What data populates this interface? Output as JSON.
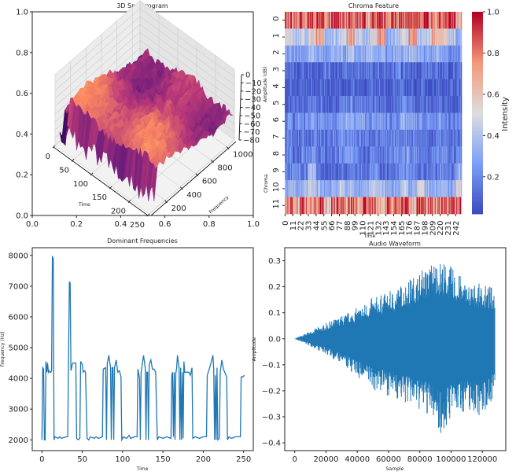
{
  "chart_data": [
    {
      "type": "surface",
      "title": "3D Spectrogram",
      "xlabel": "Time",
      "ylabel": "Frequency",
      "zlabel": "Amplitude (dB)",
      "x_ticks": [
        0,
        50,
        100,
        150,
        200,
        250
      ],
      "y_ticks": [
        200,
        400,
        600,
        800,
        1000
      ],
      "z_ticks": [
        0,
        -10,
        -20,
        -30,
        -40,
        -50,
        -60,
        -70,
        -80
      ],
      "colormap": "magma",
      "frame_x_ticks": [
        "0.0",
        "0.2",
        "0.4",
        "0.6",
        "0.8",
        "1.0"
      ],
      "frame_y_ticks": [
        "0.0",
        "0.2",
        "0.4",
        "0.6",
        "0.8",
        "1.0"
      ]
    },
    {
      "type": "heatmap",
      "title": "Chroma Feature",
      "xlabel": "Time",
      "ylabel": "Chroma",
      "row_labels": [
        "0",
        "1",
        "2",
        "3",
        "4",
        "5",
        "6",
        "7",
        "8",
        "9",
        "10",
        "11"
      ],
      "col_labels": [
        "0",
        "11",
        "22",
        "33",
        "44",
        "55",
        "66",
        "77",
        "88",
        "99",
        "110",
        "121",
        "132",
        "143",
        "154",
        "165",
        "176",
        "187",
        "198",
        "209",
        "220",
        "231",
        "242"
      ],
      "colormap": "coolwarm",
      "colorbar_label": "Intensity",
      "colorbar_ticks": [
        0.2,
        0.4,
        0.6,
        0.8,
        1.0
      ],
      "vlim": [
        0.02,
        1.0
      ],
      "values": [
        [
          0.95,
          0.9,
          0.85,
          0.95,
          0.9,
          0.8,
          0.95,
          0.85,
          0.9,
          0.8,
          0.95,
          0.9,
          0.95,
          0.85,
          0.9,
          0.95,
          0.9,
          0.85,
          0.95,
          0.9,
          0.85,
          0.95,
          0.7
        ],
        [
          0.55,
          0.4,
          0.45,
          0.5,
          0.75,
          0.35,
          0.4,
          0.45,
          0.7,
          0.45,
          0.4,
          0.5,
          0.75,
          0.35,
          0.4,
          0.5,
          0.8,
          0.4,
          0.45,
          0.7,
          0.6,
          0.4,
          0.35
        ],
        [
          0.3,
          0.25,
          0.3,
          0.35,
          0.3,
          0.25,
          0.3,
          0.3,
          0.35,
          0.3,
          0.3,
          0.35,
          0.3,
          0.25,
          0.3,
          0.3,
          0.35,
          0.3,
          0.3,
          0.35,
          0.3,
          0.2,
          0.25
        ],
        [
          0.12,
          0.1,
          0.12,
          0.1,
          0.12,
          0.15,
          0.1,
          0.12,
          0.1,
          0.15,
          0.12,
          0.1,
          0.12,
          0.1,
          0.15,
          0.12,
          0.1,
          0.12,
          0.15,
          0.1,
          0.12,
          0.1,
          0.12
        ],
        [
          0.08,
          0.07,
          0.1,
          0.08,
          0.07,
          0.1,
          0.08,
          0.07,
          0.1,
          0.08,
          0.07,
          0.08,
          0.1,
          0.07,
          0.08,
          0.1,
          0.07,
          0.08,
          0.07,
          0.1,
          0.08,
          0.07,
          0.09
        ],
        [
          0.12,
          0.1,
          0.12,
          0.15,
          0.12,
          0.1,
          0.15,
          0.18,
          0.2,
          0.15,
          0.12,
          0.15,
          0.12,
          0.1,
          0.15,
          0.2,
          0.15,
          0.12,
          0.1,
          0.12,
          0.15,
          0.1,
          0.12
        ],
        [
          0.2,
          0.18,
          0.2,
          0.25,
          0.2,
          0.22,
          0.25,
          0.3,
          0.3,
          0.28,
          0.25,
          0.22,
          0.25,
          0.2,
          0.25,
          0.3,
          0.25,
          0.22,
          0.2,
          0.22,
          0.2,
          0.18,
          0.2
        ],
        [
          0.15,
          0.12,
          0.15,
          0.18,
          0.15,
          0.12,
          0.18,
          0.2,
          0.22,
          0.18,
          0.15,
          0.18,
          0.15,
          0.12,
          0.18,
          0.2,
          0.18,
          0.15,
          0.12,
          0.15,
          0.18,
          0.12,
          0.15
        ],
        [
          0.15,
          0.12,
          0.18,
          0.25,
          0.15,
          0.12,
          0.15,
          0.2,
          0.25,
          0.2,
          0.15,
          0.2,
          0.18,
          0.15,
          0.2,
          0.25,
          0.2,
          0.15,
          0.12,
          0.15,
          0.2,
          0.15,
          0.2
        ],
        [
          0.18,
          0.25,
          0.15,
          0.4,
          0.12,
          0.1,
          0.1,
          0.15,
          0.2,
          0.18,
          0.15,
          0.2,
          0.15,
          0.12,
          0.18,
          0.2,
          0.18,
          0.12,
          0.1,
          0.15,
          0.2,
          0.12,
          0.3
        ],
        [
          0.35,
          0.3,
          0.35,
          0.4,
          0.35,
          0.3,
          0.35,
          0.4,
          0.35,
          0.3,
          0.35,
          0.45,
          0.35,
          0.3,
          0.35,
          0.4,
          0.3,
          0.45,
          0.35,
          0.3,
          0.35,
          0.3,
          0.45
        ],
        [
          0.85,
          0.65,
          0.9,
          0.75,
          0.85,
          0.65,
          0.9,
          0.85,
          0.9,
          0.7,
          0.9,
          0.85,
          0.65,
          0.9,
          0.85,
          0.9,
          0.7,
          0.95,
          0.9,
          0.85,
          0.9,
          0.85,
          0.95
        ]
      ]
    },
    {
      "type": "line",
      "title": "Dominant Frequencies",
      "xlabel": "Time",
      "ylabel": "Frequency (Hz)",
      "xlim": [
        -12,
        262
      ],
      "ylim": [
        1650,
        8250
      ],
      "x_ticks": [
        0,
        50,
        100,
        150,
        200,
        250
      ],
      "y_ticks": [
        2000,
        3000,
        4000,
        5000,
        6000,
        7000,
        8000
      ],
      "color": "#1f77b4",
      "points": [
        [
          0,
          2000
        ],
        [
          1,
          4350
        ],
        [
          2,
          4300
        ],
        [
          3,
          2000
        ],
        [
          4,
          2000
        ],
        [
          5,
          4550
        ],
        [
          6,
          4200
        ],
        [
          7,
          4500
        ],
        [
          8,
          4200
        ],
        [
          9,
          4250
        ],
        [
          10,
          4200
        ],
        [
          11,
          4200
        ],
        [
          12,
          4250
        ],
        [
          13,
          7950
        ],
        [
          14,
          7900
        ],
        [
          15,
          2000
        ],
        [
          16,
          2100
        ],
        [
          20,
          2050
        ],
        [
          22,
          2100
        ],
        [
          24,
          2050
        ],
        [
          30,
          2100
        ],
        [
          32,
          2100
        ],
        [
          34,
          7150
        ],
        [
          35,
          7100
        ],
        [
          36,
          4250
        ],
        [
          38,
          4500
        ],
        [
          42,
          4500
        ],
        [
          43,
          2050
        ],
        [
          45,
          2000
        ],
        [
          47,
          2050
        ],
        [
          48,
          4550
        ],
        [
          50,
          4450
        ],
        [
          51,
          4200
        ],
        [
          53,
          4250
        ],
        [
          54,
          4200
        ],
        [
          56,
          2050
        ],
        [
          58,
          2000
        ],
        [
          60,
          2100
        ],
        [
          65,
          2050
        ],
        [
          67,
          2100
        ],
        [
          70,
          2050
        ],
        [
          75,
          2100
        ],
        [
          76,
          4300
        ],
        [
          79,
          4350
        ],
        [
          80,
          2000
        ],
        [
          81,
          4500
        ],
        [
          83,
          4750
        ],
        [
          85,
          4350
        ],
        [
          86,
          2000
        ],
        [
          87,
          4350
        ],
        [
          88,
          4350
        ],
        [
          89,
          2000
        ],
        [
          90,
          4350
        ],
        [
          92,
          4600
        ],
        [
          94,
          4200
        ],
        [
          96,
          4250
        ],
        [
          98,
          4050
        ],
        [
          99,
          2000
        ],
        [
          101,
          2100
        ],
        [
          105,
          2050
        ],
        [
          108,
          2150
        ],
        [
          110,
          2050
        ],
        [
          115,
          2100
        ],
        [
          118,
          2100
        ],
        [
          119,
          4300
        ],
        [
          121,
          4000
        ],
        [
          122,
          2000
        ],
        [
          123,
          4200
        ],
        [
          126,
          4750
        ],
        [
          128,
          4350
        ],
        [
          129,
          2000
        ],
        [
          130,
          4200
        ],
        [
          131,
          4200
        ],
        [
          132,
          2000
        ],
        [
          133,
          4450
        ],
        [
          135,
          4600
        ],
        [
          137,
          4300
        ],
        [
          139,
          4300
        ],
        [
          141,
          4200
        ],
        [
          143,
          2000
        ],
        [
          145,
          2100
        ],
        [
          150,
          2050
        ],
        [
          155,
          2100
        ],
        [
          160,
          2050
        ],
        [
          161,
          4100
        ],
        [
          162,
          4200
        ],
        [
          163,
          2100
        ],
        [
          164,
          4200
        ],
        [
          165,
          2000
        ],
        [
          166,
          4150
        ],
        [
          167,
          4350
        ],
        [
          168,
          4750
        ],
        [
          170,
          4350
        ],
        [
          171,
          2000
        ],
        [
          172,
          4350
        ],
        [
          173,
          2000
        ],
        [
          174,
          4200
        ],
        [
          175,
          2050
        ],
        [
          176,
          4550
        ],
        [
          177,
          4200
        ],
        [
          182,
          4200
        ],
        [
          184,
          4100
        ],
        [
          186,
          4350
        ],
        [
          187,
          2050
        ],
        [
          190,
          2100
        ],
        [
          195,
          2050
        ],
        [
          200,
          2100
        ],
        [
          204,
          2100
        ],
        [
          205,
          4100
        ],
        [
          208,
          4350
        ],
        [
          212,
          4750
        ],
        [
          213,
          4300
        ],
        [
          214,
          2000
        ],
        [
          215,
          4100
        ],
        [
          216,
          2000
        ],
        [
          217,
          4350
        ],
        [
          218,
          2000
        ],
        [
          220,
          2050
        ],
        [
          221,
          4200
        ],
        [
          223,
          4600
        ],
        [
          225,
          4300
        ],
        [
          229,
          4050
        ],
        [
          230,
          2000
        ],
        [
          232,
          2100
        ],
        [
          235,
          2050
        ],
        [
          240,
          2100
        ],
        [
          246,
          2100
        ],
        [
          247,
          4050
        ],
        [
          249,
          4050
        ],
        [
          251,
          4100
        ]
      ]
    },
    {
      "type": "line",
      "title": "Audio Waveform",
      "xlabel": "Sample",
      "ylabel": "Amplitude",
      "xlim": [
        -6400,
        135000
      ],
      "ylim": [
        -0.43,
        0.35
      ],
      "x_ticks": [
        0,
        20000,
        40000,
        60000,
        80000,
        100000,
        120000
      ],
      "y_ticks": [
        -0.4,
        -0.3,
        -0.2,
        -0.1,
        0.0,
        0.1,
        0.2,
        0.3
      ],
      "color": "#1f77b4",
      "envelope": [
        [
          0,
          0,
          0
        ],
        [
          10000,
          0.03,
          -0.03
        ],
        [
          20000,
          0.06,
          -0.06
        ],
        [
          30000,
          0.09,
          -0.1
        ],
        [
          40000,
          0.12,
          -0.15
        ],
        [
          50000,
          0.16,
          -0.2
        ],
        [
          60000,
          0.18,
          -0.22
        ],
        [
          70000,
          0.22,
          -0.25
        ],
        [
          80000,
          0.26,
          -0.28
        ],
        [
          90000,
          0.31,
          -0.32
        ],
        [
          95000,
          0.3,
          -0.39
        ],
        [
          100000,
          0.28,
          -0.3
        ],
        [
          110000,
          0.22,
          -0.28
        ],
        [
          120000,
          0.21,
          -0.3
        ],
        [
          128000,
          0.2,
          -0.22
        ]
      ]
    }
  ]
}
